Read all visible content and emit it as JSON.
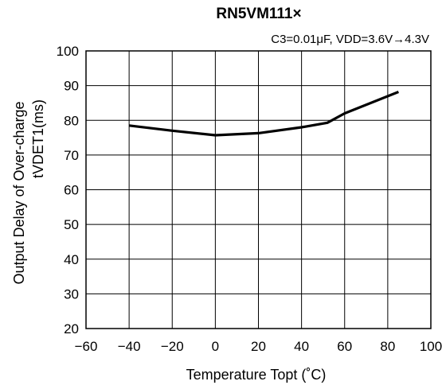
{
  "chart_data": {
    "type": "line",
    "title": "RN5VM111×",
    "subtitle": "C3=0.01μF, VDD=3.6V→4.3V",
    "xlabel": "Temperature Topt (˚C)",
    "ylabel_line1": "Output Delay of Over-charge",
    "ylabel_line2": "tVDET1(ms)",
    "xlim": [
      -60,
      100
    ],
    "ylim": [
      20,
      100
    ],
    "x_ticks": [
      "−60",
      "−40",
      "−20",
      "0",
      "20",
      "40",
      "60",
      "80",
      "100"
    ],
    "y_ticks": [
      "100",
      "90",
      "80",
      "70",
      "60",
      "50",
      "40",
      "30",
      "20"
    ],
    "grid": true,
    "series": [
      {
        "x": [
          -40,
          -20,
          0,
          20,
          40,
          52,
          60,
          85
        ],
        "y": [
          78.5,
          77.0,
          75.7,
          76.3,
          78.0,
          79.3,
          82.0,
          88.2
        ],
        "color": "#000000"
      }
    ]
  }
}
